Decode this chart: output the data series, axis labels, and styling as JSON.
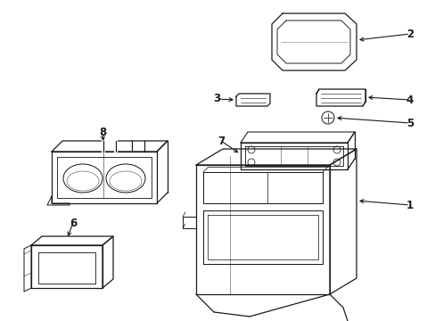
{
  "background_color": "#ffffff",
  "line_color": "#1a1a1a",
  "line_width": 0.9,
  "callout_fontsize": 8.5,
  "fig_width": 4.89,
  "fig_height": 3.6,
  "dpi": 100
}
